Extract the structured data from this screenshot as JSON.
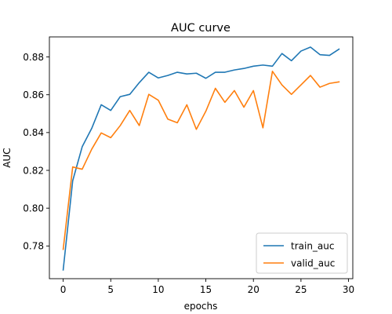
{
  "chart_data": {
    "type": "line",
    "title": "AUC curve",
    "xlabel": "epochs",
    "ylabel": "AUC",
    "xlim": [
      -1.45,
      30.45
    ],
    "ylim": [
      0.7627,
      0.8906
    ],
    "x_ticks": [
      0,
      5,
      10,
      15,
      20,
      25,
      30
    ],
    "y_ticks": [
      0.78,
      0.8,
      0.82,
      0.84,
      0.86,
      0.88
    ],
    "y_tick_labels": [
      "0.78",
      "0.80",
      "0.82",
      "0.84",
      "0.86",
      "0.88"
    ],
    "grid": false,
    "legend_position": "lower-right",
    "x": [
      0,
      1,
      2,
      3,
      4,
      5,
      6,
      7,
      8,
      9,
      10,
      11,
      12,
      13,
      14,
      15,
      16,
      17,
      18,
      19,
      20,
      21,
      22,
      23,
      24,
      25,
      26,
      27,
      28,
      29
    ],
    "series": [
      {
        "name": "train_auc",
        "color": "#1f77b4",
        "values": [
          0.7673,
          0.8145,
          0.8325,
          0.8422,
          0.8547,
          0.8517,
          0.859,
          0.8602,
          0.8664,
          0.8719,
          0.8689,
          0.8702,
          0.8719,
          0.871,
          0.8714,
          0.8687,
          0.8719,
          0.8719,
          0.8731,
          0.8739,
          0.8751,
          0.8757,
          0.8751,
          0.8818,
          0.878,
          0.8831,
          0.8852,
          0.8812,
          0.8808,
          0.8841
        ]
      },
      {
        "name": "valid_auc",
        "color": "#ff7f0e",
        "values": [
          0.7782,
          0.8218,
          0.8206,
          0.8312,
          0.8398,
          0.8373,
          0.8437,
          0.8517,
          0.8437,
          0.8602,
          0.8571,
          0.8471,
          0.8452,
          0.8547,
          0.8417,
          0.8513,
          0.8634,
          0.856,
          0.8622,
          0.8534,
          0.8622,
          0.8425,
          0.8724,
          0.8652,
          0.8602,
          0.8652,
          0.8702,
          0.864,
          0.866,
          0.8668
        ]
      }
    ]
  }
}
